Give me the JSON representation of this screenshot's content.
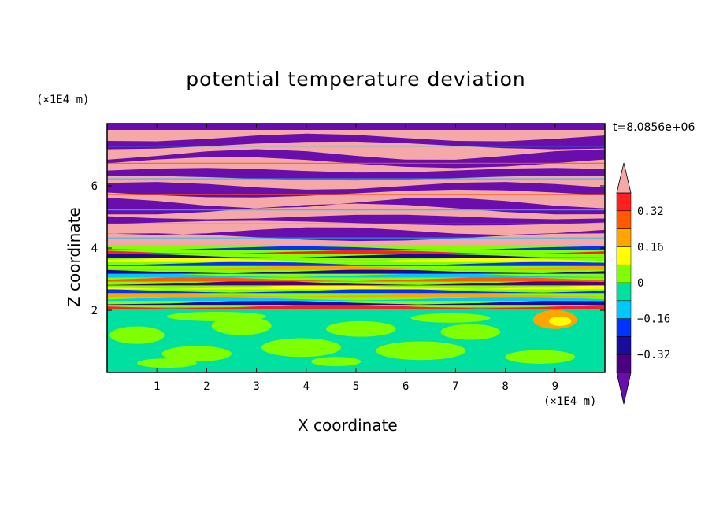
{
  "chart_data": {
    "type": "heatmap",
    "title": "potential temperature deviation",
    "xlabel": "X coordinate",
    "ylabel": "Z coordinate",
    "x_unit": "(×1E4 m)",
    "y_unit": "(×1E4 m)",
    "time_label": "t=8.0856e+06",
    "xlim": [
      0,
      10
    ],
    "ylim": [
      0,
      8
    ],
    "x_ticks": [
      "1",
      "2",
      "3",
      "4",
      "5",
      "6",
      "7",
      "8",
      "9"
    ],
    "y_ticks": [
      "2",
      "4",
      "6"
    ],
    "colorbar": {
      "levels": [
        -0.4,
        -0.32,
        -0.24,
        -0.16,
        -0.08,
        0,
        0.08,
        0.16,
        0.24,
        0.32,
        0.4
      ],
      "tick_labels": [
        "0.32",
        "0.16",
        "0",
        "−0.16",
        "−0.32"
      ],
      "colors": [
        "#6a0dad",
        "#4b0082",
        "#1a0aa0",
        "#0033ff",
        "#00c8ff",
        "#00e0a0",
        "#7fff00",
        "#ffff00",
        "#ffa500",
        "#ff5a00",
        "#ff2020",
        "#f4a8a8"
      ],
      "extend": "both"
    },
    "regions": {
      "lower_layer": "Z 0 to 2: green and light-green swirling",
      "mixed_layer": "Z 2 to 4: thin alternating bands of all colors",
      "upper_layer": "Z 4 to 8: alternating purple and pink bands"
    }
  }
}
